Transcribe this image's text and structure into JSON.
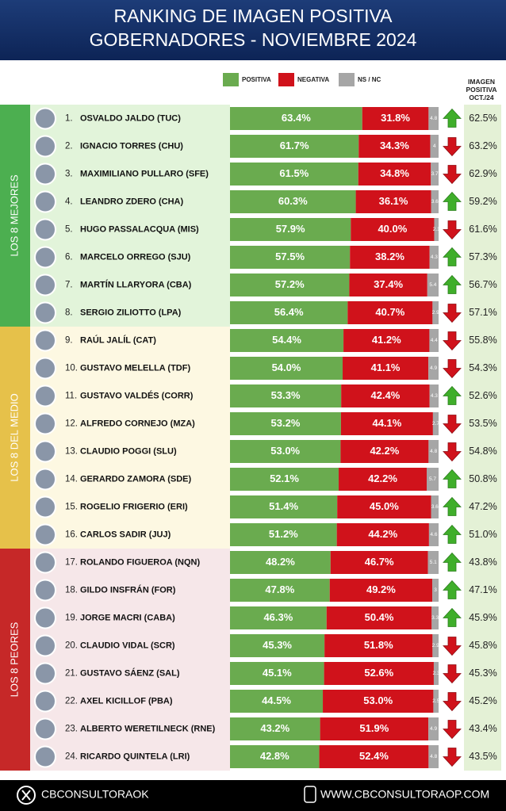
{
  "chart_data": {
    "type": "bar",
    "orientation": "horizontal",
    "stacked": true,
    "title": "RANKING DE IMAGEN POSITIVA",
    "subtitle": "GOBERNADORES - NOVIEMBRE 2024",
    "xlim": [
      0,
      100
    ],
    "ranks": [
      "1.",
      "2.",
      "3.",
      "4.",
      "5.",
      "6.",
      "7.",
      "8.",
      "9.",
      "10.",
      "11.",
      "12.",
      "13.",
      "14.",
      "15.",
      "16.",
      "17.",
      "18.",
      "19.",
      "20.",
      "21.",
      "22.",
      "23.",
      "24."
    ],
    "categories": [
      "OSVALDO JALDO (TUC)",
      "IGNACIO TORRES (CHU)",
      "MAXIMILIANO PULLARO (SFE)",
      "LEANDRO ZDERO (CHA)",
      "HUGO PASSALACQUA (MIS)",
      "MARCELO ORREGO (SJU)",
      "MARTÍN LLARYORA (CBA)",
      "SERGIO ZILIOTTO (LPA)",
      "RAÚL JALÍL (CAT)",
      "GUSTAVO MELELLA (TDF)",
      "GUSTAVO VALDÉS (CORR)",
      "ALFREDO CORNEJO (MZA)",
      "CLAUDIO POGGI (SLU)",
      "GERARDO ZAMORA (SDE)",
      "ROGELIO FRIGERIO (ERI)",
      "CARLOS SADIR (JUJ)",
      "ROLANDO FIGUEROA (NQN)",
      "GILDO INSFRÁN (FOR)",
      "JORGE MACRI (CABA)",
      "CLAUDIO VIDAL (SCR)",
      "GUSTAVO SÁENZ (SAL)",
      "AXEL KICILLOF (PBA)",
      "ALBERTO WERETILNECK (RNE)",
      "RICARDO QUINTELA (LRI)"
    ],
    "series": [
      {
        "name": "POSITIVA",
        "color": "#6aab4f",
        "values": [
          63.4,
          61.7,
          61.5,
          60.3,
          57.9,
          57.5,
          57.2,
          56.4,
          54.4,
          54.0,
          53.3,
          53.2,
          53.0,
          52.1,
          51.4,
          51.2,
          48.2,
          47.8,
          46.3,
          45.3,
          45.1,
          44.5,
          43.2,
          42.8
        ],
        "value_labels": [
          "63.4%",
          "61.7%",
          "61.5%",
          "60.3%",
          "57.9%",
          "57.5%",
          "57.2%",
          "56.4%",
          "54.4%",
          "54.0%",
          "53.3%",
          "53.2%",
          "53.0%",
          "52.1%",
          "51.4%",
          "51.2%",
          "48.2%",
          "47.8%",
          "46.3%",
          "45.3%",
          "45.1%",
          "44.5%",
          "43.2%",
          "42.8%"
        ]
      },
      {
        "name": "NEGATIVA",
        "color": "#d0121b",
        "values": [
          31.8,
          34.3,
          34.8,
          36.1,
          40.0,
          38.2,
          37.4,
          40.7,
          41.2,
          41.1,
          42.4,
          44.1,
          42.2,
          42.2,
          45.0,
          44.2,
          46.7,
          49.2,
          50.4,
          51.8,
          52.6,
          53.0,
          51.9,
          52.4
        ],
        "value_labels": [
          "31.8%",
          "34.3%",
          "34.8%",
          "36.1%",
          "40.0%",
          "38.2%",
          "37.4%",
          "40.7%",
          "41.2%",
          "41.1%",
          "42.4%",
          "44.1%",
          "42.2%",
          "42.2%",
          "45.0%",
          "44.2%",
          "46.7%",
          "49.2%",
          "50.4%",
          "51.8%",
          "52.6%",
          "53.0%",
          "51.9%",
          "52.4%"
        ]
      },
      {
        "name": "NS / NC",
        "color": "#a6a6a6",
        "values": [
          4.8,
          4.0,
          3.7,
          3.6,
          2.1,
          4.3,
          5.4,
          2.9,
          4.4,
          4.9,
          4.3,
          2.7,
          4.8,
          5.7,
          3.6,
          4.6,
          5.1,
          3.0,
          3.3,
          2.9,
          2.3,
          2.5,
          4.9,
          4.8
        ]
      }
    ],
    "previous": {
      "name": "IMAGEN POSITIVA OCT./24",
      "color": "#e4f1d6",
      "values": [
        62.5,
        63.2,
        62.9,
        59.2,
        61.6,
        57.3,
        56.7,
        57.1,
        55.8,
        54.3,
        52.6,
        53.5,
        54.8,
        50.8,
        47.2,
        51.0,
        43.8,
        47.1,
        45.9,
        45.8,
        45.3,
        45.2,
        43.4,
        43.5
      ],
      "value_labels": [
        "62.5%",
        "63.2%",
        "62.9%",
        "59.2%",
        "61.6%",
        "57.3%",
        "56.7%",
        "57.1%",
        "55.8%",
        "54.3%",
        "52.6%",
        "53.5%",
        "54.8%",
        "50.8%",
        "47.2%",
        "51.0%",
        "43.8%",
        "47.1%",
        "45.9%",
        "45.8%",
        "45.3%",
        "45.2%",
        "43.4%",
        "43.5%"
      ]
    },
    "groups": [
      {
        "label": "LOS 8 MEJORES",
        "color": "#4caf50",
        "background": "#e2f4da"
      },
      {
        "label": "LOS 8 DEL MEDIO",
        "color": "#e6c14a",
        "background": "#fdf8e2"
      },
      {
        "label": "LOS 8 PEORES",
        "color": "#c62828",
        "background": "#f6e7e9"
      }
    ],
    "footer": {
      "left": "CBCONSULTORAOK",
      "right": "WWW.CBCONSULTORAOP.COM"
    }
  }
}
